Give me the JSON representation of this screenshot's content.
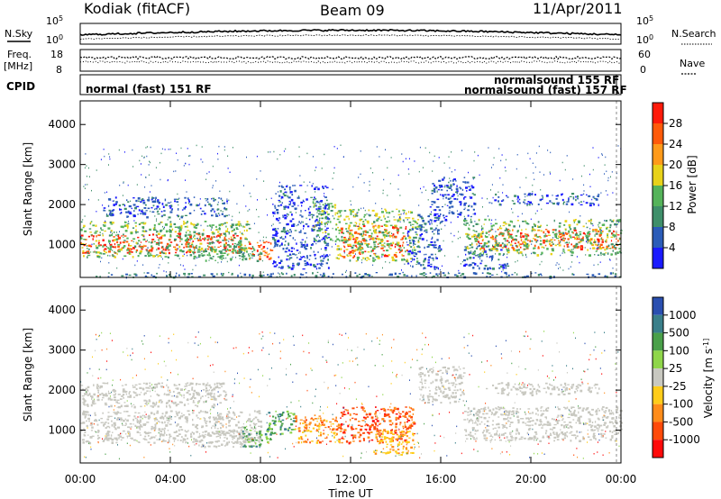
{
  "header": {
    "station": "Kodiak (fitACF)",
    "beam": "Beam 09",
    "date": "11/Apr/2011"
  },
  "strip_labels": {
    "nsky": "N.Sky",
    "freq_line1": "Freq.",
    "freq_line2": "[MHz]",
    "cpid": "CPID",
    "nsearch": "N.Search",
    "nave": "Nave",
    "noise_ticks_left": [
      "10^5",
      "10^0"
    ],
    "noise_ticks_right": [
      "10^5",
      "10^0"
    ],
    "freq_ticks": [
      "18",
      "8"
    ],
    "nave_ticks": [
      "60",
      "0"
    ]
  },
  "cpid_modes": {
    "mode_a": "normal (fast) 151 RF",
    "mode_b": "normalsound 155 RF",
    "mode_c": "normalsound (fast) 157 RF"
  },
  "colors": {
    "power_scale": [
      "#1a1aff",
      "#2b5cb8",
      "#3f8f6a",
      "#55b35a",
      "#e8d21a",
      "#ff9a1a",
      "#ff5a0a",
      "#ff1a0a"
    ],
    "velocity_scale": [
      "#2a4fb0",
      "#3a7f8a",
      "#4aa04a",
      "#8fd64a",
      "#c8c8c0",
      "#ffcc1a",
      "#ff8c1a",
      "#ff4a0a",
      "#ff0a0a"
    ],
    "ground_scatter": "#c8c8c0"
  },
  "chart_data": [
    {
      "type": "heatmap",
      "panel": "power",
      "xlabel": "",
      "ylabel": "Slant Range [km]",
      "x_ticks": [
        "00:00",
        "04:00",
        "08:00",
        "12:00",
        "16:00",
        "20:00",
        "00:00"
      ],
      "y_ticks": [
        "1000",
        "2000",
        "3000",
        "4000"
      ],
      "xlim_hours": [
        0,
        24
      ],
      "ylim_km": [
        180,
        4590
      ],
      "colorbar_label": "Power [dB]",
      "colorbar_ticks": [
        "4",
        "8",
        "12",
        "16",
        "20",
        "24",
        "28"
      ],
      "colorbar_range": [
        0,
        32
      ],
      "regions": [
        {
          "t0": 0.0,
          "t1": 7.2,
          "r0": 800,
          "r1": 1300,
          "level": 28
        },
        {
          "t0": 0.0,
          "t1": 7.5,
          "r0": 700,
          "r1": 1600,
          "level": 14
        },
        {
          "t0": 1.0,
          "t1": 6.5,
          "r0": 1700,
          "r1": 2200,
          "level": 6
        },
        {
          "t0": 7.2,
          "t1": 8.5,
          "r0": 650,
          "r1": 1100,
          "level": 26
        },
        {
          "t0": 5.0,
          "t1": 8.0,
          "r0": 600,
          "r1": 1000,
          "level": 12
        },
        {
          "t0": 8.5,
          "t1": 11.0,
          "r0": 400,
          "r1": 2500,
          "level": 5
        },
        {
          "t0": 10.3,
          "t1": 11.5,
          "r0": 1100,
          "r1": 2100,
          "level": 14
        },
        {
          "t0": 11.5,
          "t1": 14.5,
          "r0": 700,
          "r1": 1500,
          "level": 27
        },
        {
          "t0": 11.3,
          "t1": 15.0,
          "r0": 600,
          "r1": 1900,
          "level": 15
        },
        {
          "t0": 14.5,
          "t1": 16.0,
          "r0": 400,
          "r1": 1800,
          "level": 6
        },
        {
          "t0": 15.5,
          "t1": 17.5,
          "r0": 1600,
          "r1": 2700,
          "level": 5
        },
        {
          "t0": 17.0,
          "t1": 19.0,
          "r0": 400,
          "r1": 1000,
          "level": 6
        },
        {
          "t0": 17.5,
          "t1": 24.0,
          "r0": 900,
          "r1": 1400,
          "level": 27
        },
        {
          "t0": 17.0,
          "t1": 24.0,
          "r0": 750,
          "r1": 1650,
          "level": 14
        },
        {
          "t0": 18.0,
          "t1": 23.0,
          "r0": 2000,
          "r1": 2300,
          "level": 6
        },
        {
          "t0": 0.0,
          "t1": 24.0,
          "r0": 200,
          "r1": 320,
          "level": 8
        }
      ]
    },
    {
      "type": "heatmap",
      "panel": "velocity",
      "xlabel": "Time UT",
      "ylabel": "Slant Range [km]",
      "x_ticks": [
        "00:00",
        "04:00",
        "08:00",
        "12:00",
        "16:00",
        "20:00",
        "00:00"
      ],
      "y_ticks": [
        "1000",
        "2000",
        "3000",
        "4000"
      ],
      "xlim_hours": [
        0,
        24
      ],
      "ylim_km": [
        180,
        4590
      ],
      "colorbar_label": "Velocity [m s^-1]",
      "colorbar_ticks": [
        "1000",
        "500",
        "100",
        "25",
        "-25",
        "-100",
        "-500",
        "-1000"
      ],
      "regions": [
        {
          "t0": 0.0,
          "t1": 8.0,
          "r0": 700,
          "r1": 1500,
          "class": "ground"
        },
        {
          "t0": 0.0,
          "t1": 6.5,
          "r0": 1600,
          "r1": 2200,
          "class": "ground"
        },
        {
          "t0": 5.0,
          "t1": 8.0,
          "r0": 600,
          "r1": 1000,
          "class": "ground"
        },
        {
          "t0": 7.2,
          "t1": 8.5,
          "r0": 600,
          "r1": 1100,
          "class": "pos100"
        },
        {
          "t0": 8.3,
          "t1": 9.5,
          "r0": 900,
          "r1": 1500,
          "class": "pos100"
        },
        {
          "t0": 9.5,
          "t1": 11.5,
          "r0": 700,
          "r1": 1400,
          "class": "neg100"
        },
        {
          "t0": 11.5,
          "t1": 14.8,
          "r0": 700,
          "r1": 1600,
          "class": "neg500"
        },
        {
          "t0": 13.0,
          "t1": 14.8,
          "r0": 400,
          "r1": 1000,
          "class": "neg25"
        },
        {
          "t0": 15.0,
          "t1": 17.0,
          "r0": 1700,
          "r1": 2600,
          "class": "ground"
        },
        {
          "t0": 17.0,
          "t1": 24.0,
          "r0": 750,
          "r1": 1600,
          "class": "ground"
        },
        {
          "t0": 18.0,
          "t1": 23.0,
          "r0": 1900,
          "r1": 2200,
          "class": "ground"
        }
      ]
    }
  ]
}
